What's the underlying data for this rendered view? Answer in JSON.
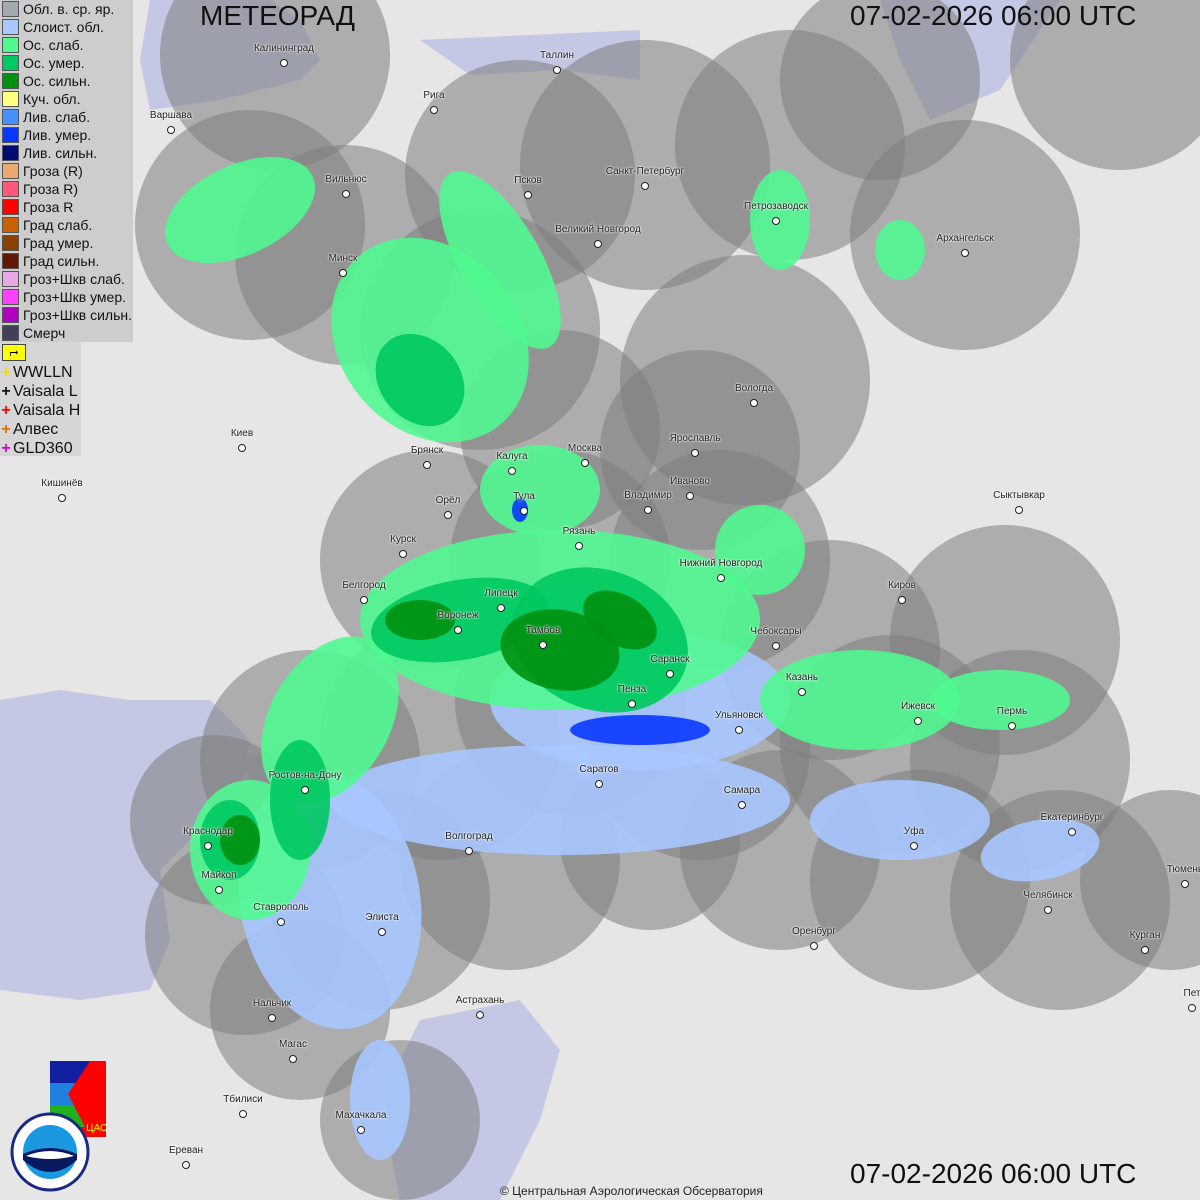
{
  "header": {
    "title": "МЕТЕОРАД",
    "datetime_top": "07-02-2026  06:00 UTC",
    "datetime_bottom": "07-02-2026  06:00 UTC"
  },
  "legend": [
    {
      "label": "Обл. в. ср. яр.",
      "color": "#a0aab0"
    },
    {
      "label": "Слоист. обл.",
      "color": "#a8c8ff"
    },
    {
      "label": "Ос. слаб.",
      "color": "#50f890"
    },
    {
      "label": "Ос. умер.",
      "color": "#00c860"
    },
    {
      "label": "Ос. сильн.",
      "color": "#009010"
    },
    {
      "label": "Куч. обл.",
      "color": "#ffff80"
    },
    {
      "label": "Лив. слаб.",
      "color": "#4890ff"
    },
    {
      "label": "Лив. умер.",
      "color": "#0838ff"
    },
    {
      "label": "Лив. сильн.",
      "color": "#000c70"
    },
    {
      "label": "Гроза (R)",
      "color": "#e8a870"
    },
    {
      "label": "Гроза R)",
      "color": "#ff5878"
    },
    {
      "label": "Гроза R",
      "color": "#ff0000"
    },
    {
      "label": "Град слаб.",
      "color": "#c86000"
    },
    {
      "label": "Град умер.",
      "color": "#8a4000"
    },
    {
      "label": "Град сильн.",
      "color": "#601800"
    },
    {
      "label": "Гроз+Шкв слаб.",
      "color": "#e8a8e8"
    },
    {
      "label": "Гроз+Шкв умер.",
      "color": "#ff40ff"
    },
    {
      "label": "Гроз+Шкв сильн.",
      "color": "#b000c0"
    },
    {
      "label": "Смерч",
      "color": "#404058"
    }
  ],
  "lightning": {
    "flag_icon": "lightning-flag-icon",
    "sources": [
      {
        "label": "WWLLN",
        "color": "#ffd800"
      },
      {
        "label": "Vaisala L",
        "color": "#111111"
      },
      {
        "label": "Vaisala H",
        "color": "#ff0000"
      },
      {
        "label": "Алвес",
        "color": "#e07000"
      },
      {
        "label": "GLD360",
        "color": "#d000d0"
      }
    ]
  },
  "cities": [
    "Калининград",
    "Таллин",
    "Рига",
    "Варшава",
    "Вильнюс",
    "Псков",
    "Санкт-Петербург",
    "Великий Новгород",
    "Петрозаводск",
    "Архангельск",
    "Минск",
    "Вологда",
    "Ярославль",
    "Москва",
    "Калуга",
    "Брянск",
    "Киев",
    "Иваново",
    "Владимир",
    "Тула",
    "Орёл",
    "Рязань",
    "Кишинёв",
    "Сыктывкар",
    "Курск",
    "Нижний Новгород",
    "Киров",
    "Белгород",
    "Липецк",
    "Воронеж",
    "Тамбов",
    "Чебоксары",
    "Саранск",
    "Казань",
    "Пенза",
    "Ижевск",
    "Пермь",
    "Ульяновск",
    "Саратов",
    "Ростов-на-Дону",
    "Самара",
    "Краснодар",
    "Волгоград",
    "Уфа",
    "Екатеринбург",
    "Майкоп",
    "Челябинск",
    "Тюмень",
    "Ставрополь",
    "Элиста",
    "Оренбург",
    "Курган",
    "Нальчик",
    "Астрахань",
    "Магас",
    "Тбилиси",
    "Махачкала",
    "Ереван",
    "Пет"
  ],
  "logos": {
    "cao": "ЦАО 1941",
    "roshydromet": "РОСГИДРОМЕТ ROSHYDROMET"
  },
  "footer": {
    "copyright": "© Центральная Аэрологическая Обсерватория"
  }
}
